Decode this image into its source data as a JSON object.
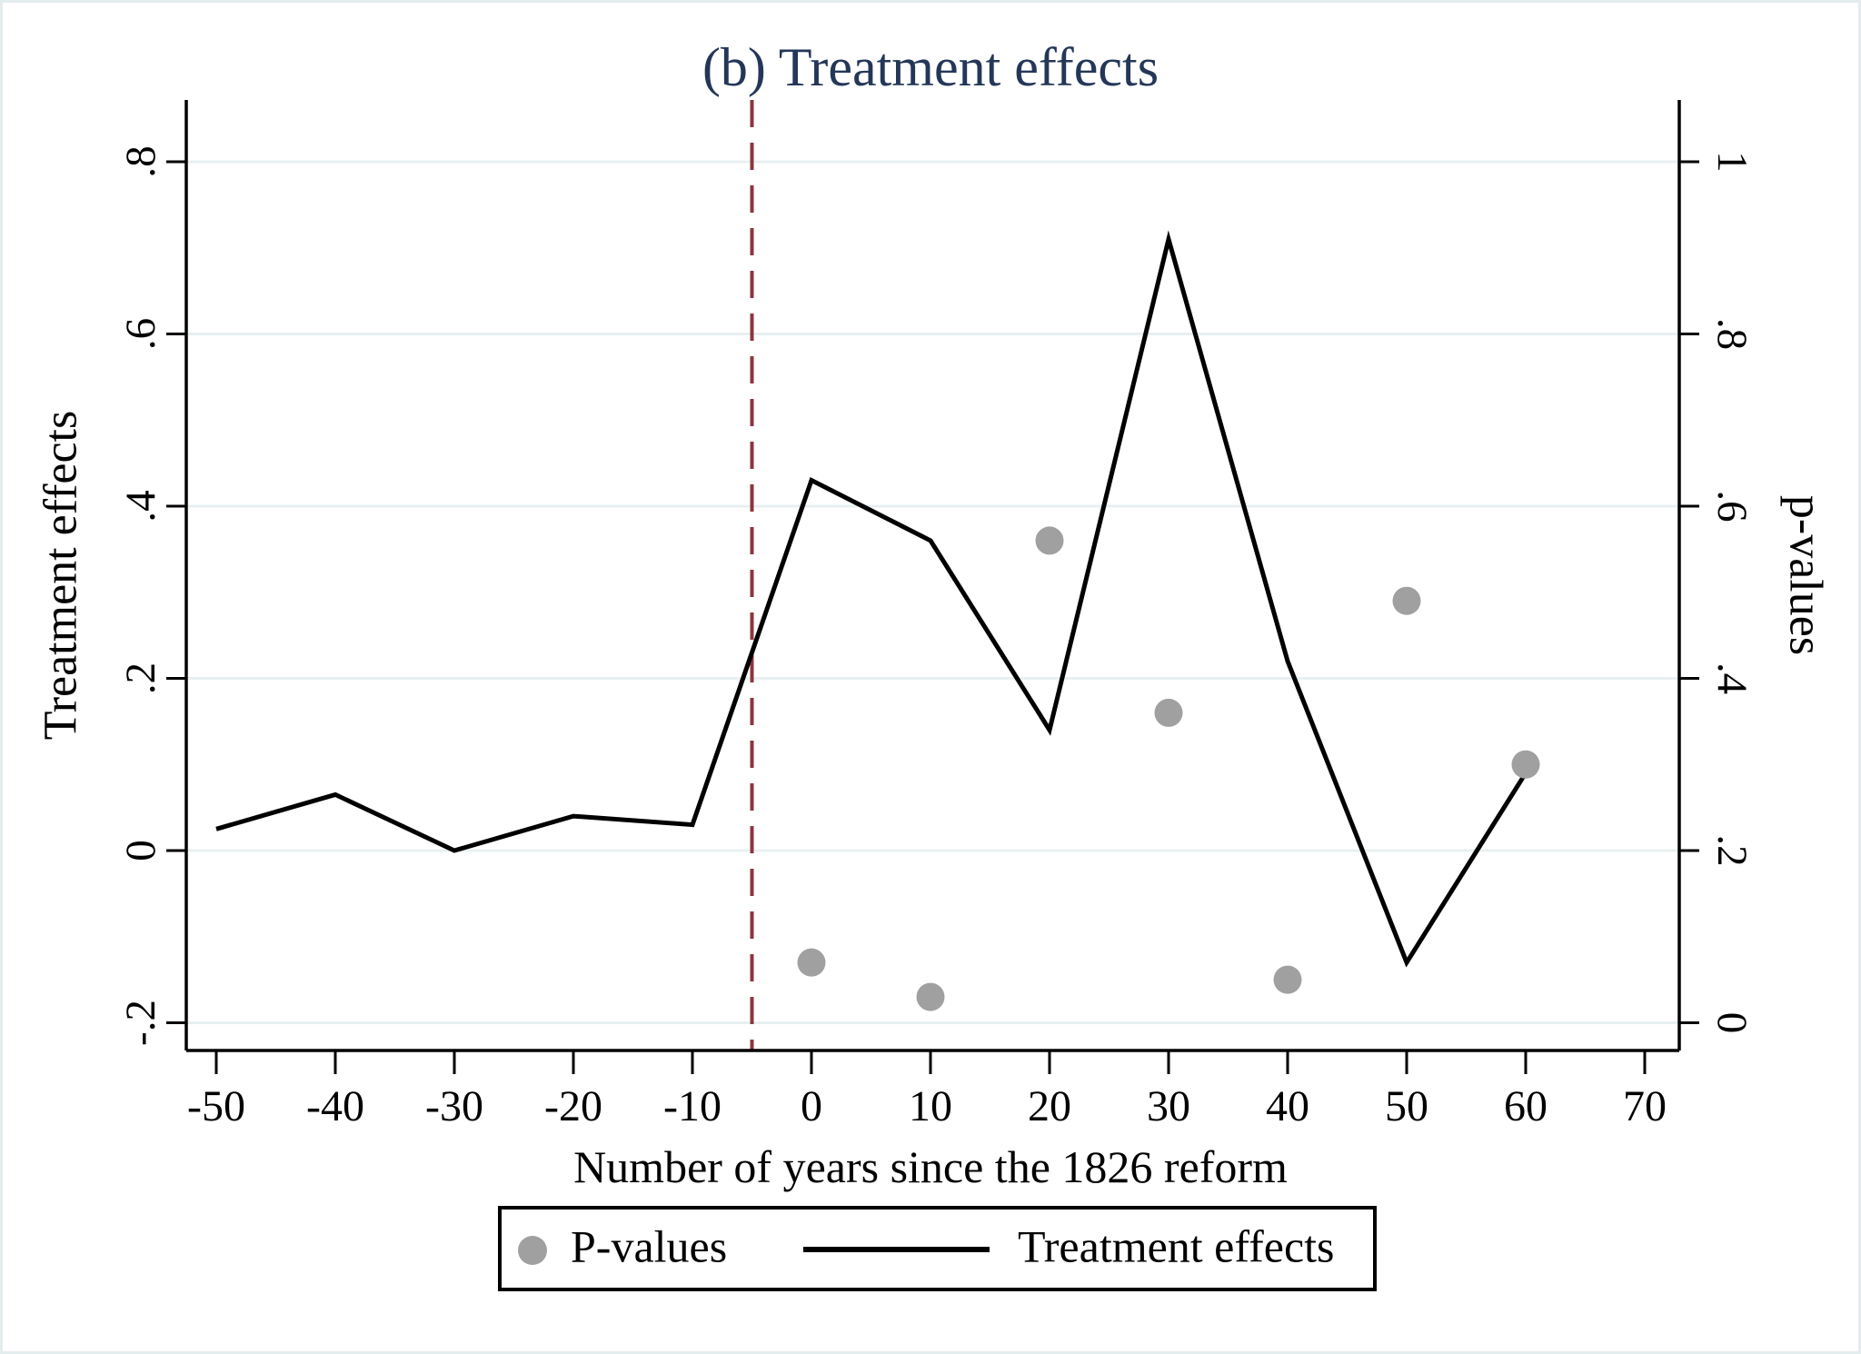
{
  "chart_data": {
    "type": "line",
    "title": "(b) Treatment effects",
    "title_color": "#243758",
    "xlabel": "Number of years since the 1826 reform",
    "x_ticks": [
      -50,
      -40,
      -30,
      -20,
      -10,
      0,
      10,
      20,
      30,
      40,
      50,
      60,
      70
    ],
    "y_left": {
      "label": "Treatment effects",
      "ticks": [
        0.8,
        0.6,
        0.4,
        0.2,
        0,
        -0.2
      ],
      "tick_labels": [
        ".8",
        ".6",
        ".4",
        ".2",
        "0",
        "-.2"
      ],
      "lim": [
        -0.2,
        0.8
      ]
    },
    "y_right": {
      "label": "p-values",
      "ticks": [
        1,
        0.8,
        0.6,
        0.4,
        0.2,
        0
      ],
      "tick_labels": [
        "1",
        ".8",
        ".6",
        ".4",
        ".2",
        "0"
      ],
      "lim": [
        0,
        1
      ]
    },
    "series": [
      {
        "name": "Treatment effects",
        "kind": "line",
        "axis": "left",
        "color": "#000000",
        "x": [
          -50,
          -40,
          -30,
          -20,
          -10,
          0,
          10,
          20,
          30,
          40,
          50,
          60
        ],
        "y": [
          0.025,
          0.065,
          0.0,
          0.04,
          0.03,
          0.43,
          0.36,
          0.14,
          0.71,
          0.22,
          -0.13,
          0.09
        ]
      },
      {
        "name": "P-values",
        "kind": "scatter",
        "axis": "right",
        "color": "#a0a0a0",
        "x": [
          0,
          10,
          20,
          30,
          40,
          50,
          60
        ],
        "y": [
          0.07,
          0.03,
          0.56,
          0.36,
          0.05,
          0.49,
          0.3
        ]
      }
    ],
    "refline": {
      "x": -5,
      "style": "dashed",
      "color": "#8d353e"
    },
    "grid": true,
    "grid_color": "#e8f0f1",
    "canvas_border_color": "#e4edee",
    "legend": {
      "position": "bottom",
      "entries": [
        "P-values",
        "Treatment effects"
      ]
    }
  }
}
